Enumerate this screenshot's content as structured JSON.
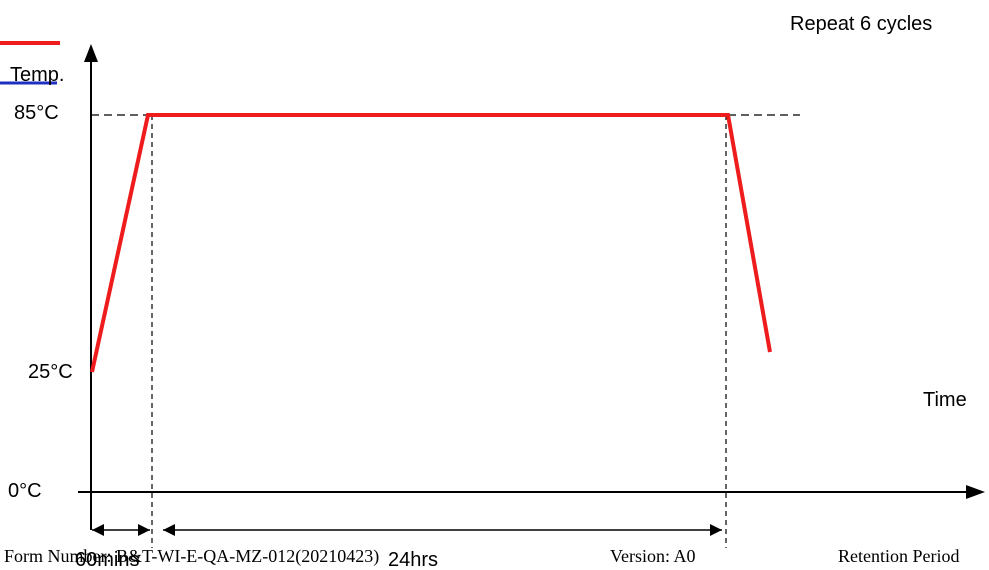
{
  "diagram": {
    "y_axis_label": "Temp.",
    "x_axis_label": "Time",
    "repeat_note": "Repeat 6 cycles",
    "temp_labels": {
      "high": "85°C",
      "low": "25°C",
      "zero": "0°C"
    },
    "duration_labels": {
      "ramp_up": "60mins",
      "dwell": "24hrs"
    }
  },
  "footer": {
    "form_number": "Form Number: B&T-WI-E-QA-MZ-012(20210423)",
    "version": "Version: A0",
    "retention": "Retention Period"
  },
  "colors": {
    "profile_line": "#ee1c1c",
    "legend_blue": "#1f2fbf",
    "axis": "#000000"
  }
}
